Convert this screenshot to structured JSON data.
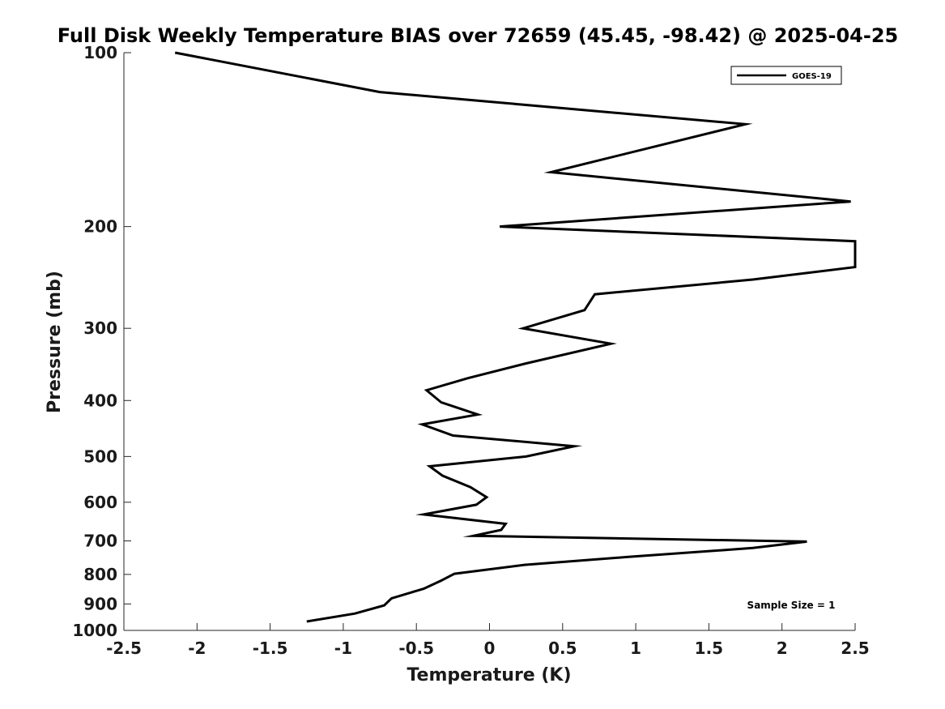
{
  "chart_data": {
    "type": "line",
    "title": "Full Disk Weekly Temperature BIAS over 72659 (45.45, -98.42) @ 2025-04-25",
    "xlabel": "Temperature (K)",
    "ylabel": "Pressure (mb)",
    "xlim": [
      -2.5,
      2.5
    ],
    "ylim": [
      100,
      1000
    ],
    "y_scale": "log",
    "y_reversed": true,
    "x_ticks": [
      -2.5,
      -2,
      -1.5,
      -1,
      -0.5,
      0,
      0.5,
      1,
      1.5,
      2,
      2.5
    ],
    "x_tick_labels": [
      "-2.5",
      "-2",
      "-1.5",
      "-1",
      "-0.5",
      "0",
      "0.5",
      "1",
      "1.5",
      "2",
      "2.5"
    ],
    "y_ticks": [
      100,
      200,
      300,
      400,
      500,
      600,
      700,
      800,
      900,
      1000
    ],
    "y_tick_labels": [
      "100",
      "200",
      "300",
      "400",
      "500",
      "600",
      "700",
      "800",
      "900",
      "1000"
    ],
    "grid": false,
    "legend_position": "top-right",
    "line_color": "#000000",
    "annotation": "Sample Size = 1",
    "series": [
      {
        "name": "GOES-19",
        "x": [
          -2.15,
          -0.75,
          1.75,
          0.42,
          2.47,
          0.07,
          2.5,
          2.5,
          1.8,
          0.72,
          0.65,
          0.23,
          0.83,
          0.25,
          -0.15,
          -0.43,
          -0.33,
          -0.08,
          -0.46,
          -0.25,
          0.58,
          0.25,
          -0.41,
          -0.32,
          -0.13,
          -0.02,
          -0.09,
          -0.45,
          0.11,
          0.08,
          -0.11,
          2.17,
          1.8,
          0.95,
          0.24,
          -0.24,
          -0.33,
          -0.45,
          -0.67,
          -0.72,
          -0.92,
          -1.25
        ],
        "y": [
          100,
          117,
          133,
          161,
          181,
          200,
          212,
          235,
          247,
          262,
          279,
          300,
          319,
          345,
          366,
          384,
          403,
          423,
          440,
          460,
          480,
          500,
          520,
          540,
          565,
          588,
          606,
          630,
          654,
          670,
          686,
          702,
          720,
          746,
          770,
          798,
          820,
          847,
          880,
          905,
          935,
          965
        ]
      }
    ]
  }
}
